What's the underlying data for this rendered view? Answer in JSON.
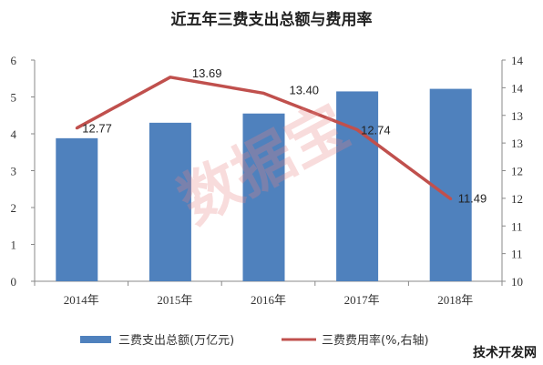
{
  "chart_data": {
    "type": "bar",
    "title": "近五年三费支出总额与费用率",
    "categories": [
      "2014年",
      "2015年",
      "2016年",
      "2017年",
      "2018年"
    ],
    "series": [
      {
        "name": "三费支出总额(万亿元)",
        "type": "bar",
        "axis": "left",
        "values": [
          3.88,
          4.3,
          4.55,
          5.15,
          5.22
        ],
        "color": "#4f81bd"
      },
      {
        "name": "三费费用率(%,右轴)",
        "type": "line",
        "axis": "right",
        "values": [
          12.77,
          13.69,
          13.4,
          12.74,
          11.49
        ],
        "labels": [
          "12.77",
          "13.69",
          "13.40",
          "12.74",
          "11.49"
        ],
        "color": "#c0504d"
      }
    ],
    "y_left": {
      "min": 0,
      "max": 6,
      "ticks": [
        "0",
        "1",
        "2",
        "3",
        "4",
        "5",
        "6"
      ]
    },
    "y_right": {
      "min": 10,
      "max": 14,
      "ticks": [
        {
          "v": 10,
          "t": "10"
        },
        {
          "v": 10.5,
          "t": "11"
        },
        {
          "v": 11,
          "t": "11"
        },
        {
          "v": 11.5,
          "t": "12"
        },
        {
          "v": 12,
          "t": "12"
        },
        {
          "v": 12.5,
          "t": "13"
        },
        {
          "v": 13,
          "t": "13"
        },
        {
          "v": 13.5,
          "t": "14"
        },
        {
          "v": 14,
          "t": "14"
        }
      ]
    },
    "grid": false,
    "legend": "bottom"
  },
  "watermark": {
    "text": "数据宝"
  },
  "logo": {
    "text": "技术开发网"
  }
}
